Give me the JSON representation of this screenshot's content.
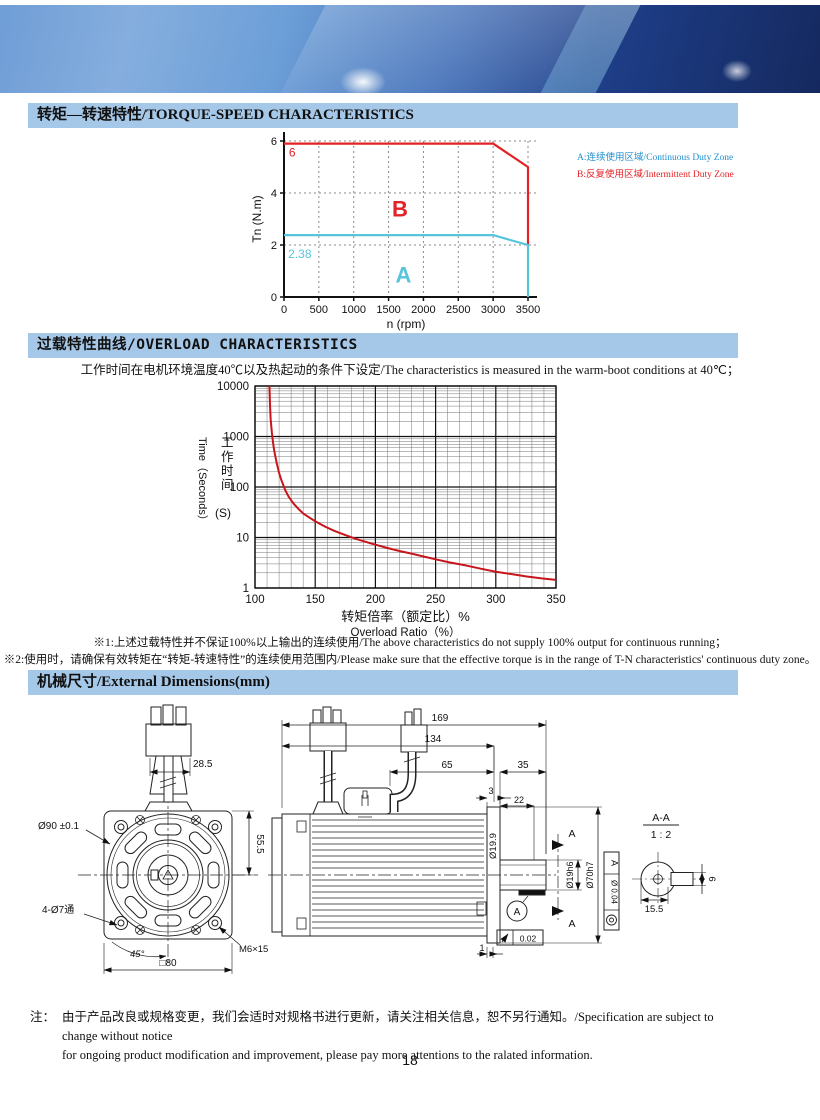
{
  "sections": {
    "torque": {
      "title": "转矩—转速特性/TORQUE-SPEED CHARACTERISTICS"
    },
    "overload": {
      "title": "过载特性曲线/OVERLOAD CHARACTERISTICS",
      "subtitle": "工作时间在电机环境温度40℃以及热起动的条件下设定/The characteristics is measured in the warm-boot conditions at 40℃；",
      "note1": "※1:上述过载特性并不保证100%以上输出的连续使用/The above characteristics do not supply 100% output for continuous running；",
      "note2": "※2:使用时，请确保有效转矩在“转矩-转速特性”的连续使用范围内/Please make sure that the effective torque is in the range of T-N characteristics' continuous duty zone。"
    },
    "dimensions": {
      "title": "机械尺寸/External Dimensions(mm)"
    }
  },
  "footer": {
    "label": "注：",
    "line1": "由于产品改良或规格变更，我们会适时对规格书进行更新，请关注相关信息，恕不另行通知。/Specification are subject to change without notice",
    "line2": "for ongoing product modification and improvement, please pay more attentions to the ralated information.",
    "page_number": "18"
  },
  "dims": {
    "front": {
      "connector_width": "28.5",
      "flange_circle": "Ø90  ±0.1",
      "height_to_center": "55.5",
      "holes": "4-Ø7通",
      "angle": "45°",
      "square": "□80",
      "screw": "M6×15"
    },
    "side": {
      "overall": "169",
      "body": "134",
      "cable": "65",
      "shaft_len": "35",
      "flange_thk": "3",
      "key_len": "22",
      "shaft_dia": "Ø19.9",
      "step": "1",
      "runout": "0.02",
      "datum": "A"
    },
    "shaft": {
      "shaft_tol": "Ø19h6",
      "spigot_tol": "Ø70h7",
      "conc_tol": "Ø 0.04",
      "conc_datum": "A",
      "section_arrow": "A"
    },
    "section": {
      "title": "A-A",
      "scale": "1 : 2",
      "width": "15.5",
      "key_h": "6"
    }
  },
  "chart_data": [
    {
      "type": "line",
      "title": "Torque-Speed Characteristics",
      "xlabel": "n (rpm)",
      "ylabel": "Tn (N.m)",
      "xlim": [
        0,
        3500
      ],
      "ylim": [
        0,
        6
      ],
      "xticks": [
        0,
        500,
        1000,
        1500,
        2000,
        2500,
        3000,
        3500
      ],
      "yticks": [
        0,
        2,
        4,
        6
      ],
      "grid": "dashed",
      "series": [
        {
          "name": "B:反复使用区域/Intermittent Duty Zone",
          "color": "#e32227",
          "points": [
            [
              0,
              5.9
            ],
            [
              3000,
              5.9
            ],
            [
              3500,
              5.0
            ],
            [
              3500,
              2.0
            ]
          ]
        },
        {
          "name": "A:连续使用区域/Continuous Duty Zone",
          "color": "#56c5dc",
          "points": [
            [
              0,
              2.38
            ],
            [
              3000,
              2.38
            ],
            [
              3500,
              2.0
            ],
            [
              3500,
              0
            ]
          ]
        }
      ],
      "annotations": [
        {
          "text": "6",
          "x": 70,
          "y": 5.4,
          "color": "#e32227",
          "size": 12,
          "bold": false
        },
        {
          "text": "2.38",
          "x": 60,
          "y": 1.5,
          "color": "#56c5dc",
          "size": 12,
          "bold": false
        },
        {
          "text": "B",
          "x": 1550,
          "y": 3.1,
          "color": "#e32227",
          "size": 22,
          "bold": true
        },
        {
          "text": "A",
          "x": 1600,
          "y": 0.55,
          "color": "#56c5dc",
          "size": 22,
          "bold": true
        }
      ],
      "legend": [
        {
          "label": "A:连续使用区域/Continuous Duty Zone",
          "color": "#1f8fce"
        },
        {
          "label": "B:反复使用区域/Intermittent Duty Zone",
          "color": "#e32227"
        }
      ]
    },
    {
      "type": "line",
      "title": "Overload Characteristics",
      "xlabel_cn": "转矩倍率（额定比）%",
      "xlabel_en": "Overload Ratio（%）",
      "ylabel_cn": "工作时间",
      "ylabel_en": "Time（Seconds）",
      "ylabel_unit": "(S)",
      "xlim": [
        100,
        350
      ],
      "ylim": [
        1,
        10000
      ],
      "ylog": true,
      "xticks": [
        100,
        150,
        200,
        250,
        300,
        350
      ],
      "yticks": [
        1,
        10,
        100,
        1000,
        10000
      ],
      "grid": "log",
      "series": [
        {
          "name": "overload-curve",
          "color": "#c8151b",
          "points": [
            [
              112,
              10000
            ],
            [
              112.5,
              4000
            ],
            [
              113,
              2200
            ],
            [
              114,
              1200
            ],
            [
              115,
              750
            ],
            [
              116,
              520
            ],
            [
              118,
              300
            ],
            [
              120,
              190
            ],
            [
              122,
              135
            ],
            [
              125,
              88
            ],
            [
              128,
              64
            ],
            [
              132,
              47
            ],
            [
              136,
              37
            ],
            [
              140,
              30
            ],
            [
              145,
              25
            ],
            [
              150,
              21
            ],
            [
              158,
              16.5
            ],
            [
              166,
              13.5
            ],
            [
              175,
              11.2
            ],
            [
              185,
              9.2
            ],
            [
              195,
              7.8
            ],
            [
              200,
              7.2
            ],
            [
              210,
              6.2
            ],
            [
              220,
              5.4
            ],
            [
              230,
              4.8
            ],
            [
              240,
              4.2
            ],
            [
              250,
              3.7
            ],
            [
              262,
              3.2
            ],
            [
              275,
              2.8
            ],
            [
              288,
              2.4
            ],
            [
              300,
              2.1
            ],
            [
              312,
              1.9
            ],
            [
              325,
              1.7
            ],
            [
              338,
              1.55
            ],
            [
              350,
              1.45
            ]
          ]
        }
      ]
    }
  ]
}
